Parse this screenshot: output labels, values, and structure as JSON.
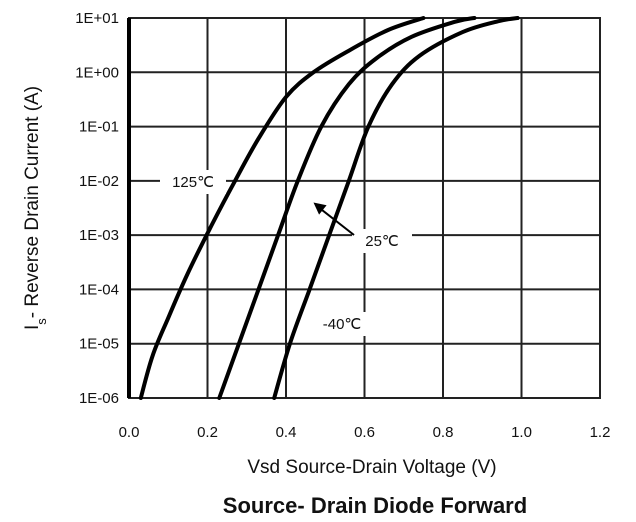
{
  "chart_data": {
    "type": "line",
    "title": "Source- Drain Diode Forward",
    "xlabel": "Vsd Source-Drain Voltage (V)",
    "ylabel_main": "I",
    "ylabel_sub": "s",
    "ylabel_rest": "- Reverse Drain Current (A)",
    "y_scale": "log",
    "xlim": [
      0.0,
      1.2
    ],
    "ylim": [
      1e-06,
      10
    ],
    "grid": true,
    "x_ticks": [
      {
        "value": 0.0,
        "label": "0.0"
      },
      {
        "value": 0.2,
        "label": "0.2"
      },
      {
        "value": 0.4,
        "label": "0.4"
      },
      {
        "value": 0.6,
        "label": "0.6"
      },
      {
        "value": 0.8,
        "label": "0.8"
      },
      {
        "value": 1.0,
        "label": "1.0"
      },
      {
        "value": 1.2,
        "label": "1.2"
      }
    ],
    "y_ticks": [
      {
        "value": 10,
        "label": "1E+01"
      },
      {
        "value": 1,
        "label": "1E+00"
      },
      {
        "value": 0.1,
        "label": "1E-01"
      },
      {
        "value": 0.01,
        "label": "1E-02"
      },
      {
        "value": 0.001,
        "label": "1E-03"
      },
      {
        "value": 0.0001,
        "label": "1E-04"
      },
      {
        "value": 1e-05,
        "label": "1E-05"
      },
      {
        "value": 1e-06,
        "label": "1E-06"
      }
    ],
    "series": [
      {
        "name": "125℃",
        "points": [
          [
            0.03,
            1e-06
          ],
          [
            0.06,
            6e-06
          ],
          [
            0.1,
            3e-05
          ],
          [
            0.15,
            0.0002
          ],
          [
            0.21,
            0.0015
          ],
          [
            0.27,
            0.01
          ],
          [
            0.33,
            0.06
          ],
          [
            0.4,
            0.35
          ],
          [
            0.47,
            1.0
          ],
          [
            0.56,
            2.5
          ],
          [
            0.66,
            6.0
          ],
          [
            0.75,
            10
          ]
        ]
      },
      {
        "name": "25℃",
        "points": [
          [
            0.23,
            1e-06
          ],
          [
            0.28,
            1e-05
          ],
          [
            0.33,
            0.0001
          ],
          [
            0.38,
            0.001
          ],
          [
            0.43,
            0.01
          ],
          [
            0.49,
            0.1
          ],
          [
            0.56,
            0.6
          ],
          [
            0.63,
            1.8
          ],
          [
            0.72,
            4.5
          ],
          [
            0.83,
            8.5
          ],
          [
            0.88,
            10
          ]
        ]
      },
      {
        "name": "-40℃",
        "points": [
          [
            0.37,
            1e-06
          ],
          [
            0.41,
            1e-05
          ],
          [
            0.46,
            0.0001
          ],
          [
            0.51,
            0.001
          ],
          [
            0.56,
            0.01
          ],
          [
            0.61,
            0.1
          ],
          [
            0.67,
            0.6
          ],
          [
            0.74,
            2.0
          ],
          [
            0.85,
            5.5
          ],
          [
            0.94,
            8.7
          ],
          [
            0.99,
            10
          ]
        ]
      }
    ],
    "annotations": [
      {
        "label": "125℃",
        "series": "125℃"
      },
      {
        "label": "25℃",
        "series": "25℃",
        "arrow_to": [
          0.47,
          0.004
        ]
      },
      {
        "label": "-40℃",
        "series": "-40℃"
      }
    ]
  }
}
